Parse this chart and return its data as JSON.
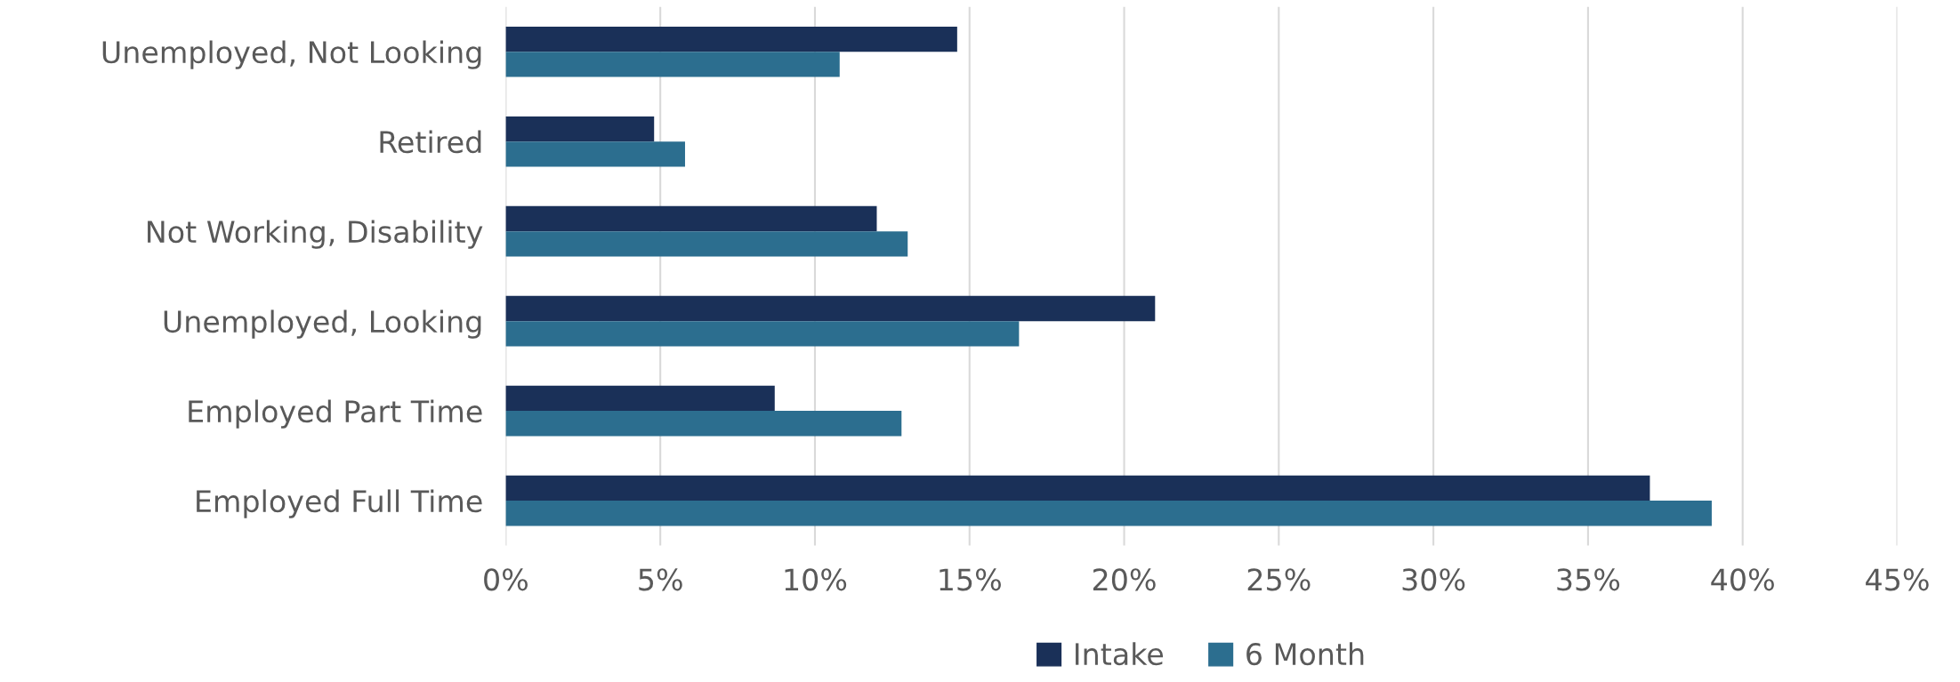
{
  "chart_data": {
    "type": "bar",
    "orientation": "horizontal",
    "categories": [
      "Unemployed, Not Looking",
      "Retired",
      "Not Working, Disability",
      "Unemployed, Looking",
      "Employed Part Time",
      "Employed Full Time"
    ],
    "series": [
      {
        "name": "Intake",
        "color": "#1a3058",
        "values": [
          14.6,
          4.8,
          12.0,
          21.0,
          8.7,
          37.0
        ]
      },
      {
        "name": "6 Month",
        "color": "#2c6e8f",
        "values": [
          10.8,
          5.8,
          13.0,
          16.6,
          12.8,
          39.0
        ]
      }
    ],
    "xlim": [
      0,
      45
    ],
    "xticks": [
      {
        "value": 0,
        "label": "0%"
      },
      {
        "value": 5,
        "label": "5%"
      },
      {
        "value": 10,
        "label": "10%"
      },
      {
        "value": 15,
        "label": "15%"
      },
      {
        "value": 20,
        "label": "20%"
      },
      {
        "value": 25,
        "label": "25%"
      },
      {
        "value": 30,
        "label": "30%"
      },
      {
        "value": 35,
        "label": "35%"
      },
      {
        "value": 40,
        "label": "40%"
      },
      {
        "value": 45,
        "label": "45%"
      }
    ],
    "grid": "x",
    "legend": "bottom"
  }
}
